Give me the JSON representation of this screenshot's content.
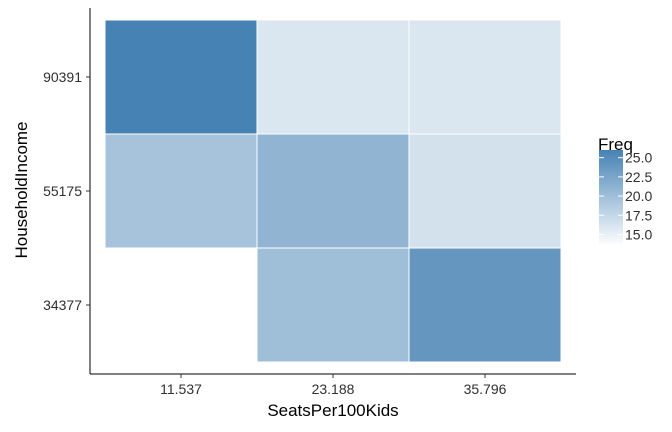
{
  "chart_data": {
    "type": "heatmap",
    "x_categories": [
      "11.537",
      "23.188",
      "35.796"
    ],
    "y_categories": [
      "34377",
      "55175",
      "90391"
    ],
    "xlabel": "SeatsPer100Kids",
    "ylabel": "HouseholdIncome",
    "cells": [
      {
        "x": "11.537",
        "y": "90391",
        "value": 26
      },
      {
        "x": "23.188",
        "y": "90391",
        "value": 16
      },
      {
        "x": "35.796",
        "y": "90391",
        "value": 16
      },
      {
        "x": "11.537",
        "y": "55175",
        "value": 19.5
      },
      {
        "x": "23.188",
        "y": "55175",
        "value": 21
      },
      {
        "x": "35.796",
        "y": "55175",
        "value": 16.5
      },
      {
        "x": "11.537",
        "y": "34377",
        "value": null
      },
      {
        "x": "23.188",
        "y": "34377",
        "value": 20
      },
      {
        "x": "35.796",
        "y": "34377",
        "value": 24
      }
    ],
    "legend": {
      "title": "Freq",
      "breaks": [
        25.0,
        22.5,
        20.0,
        17.5,
        15.0
      ],
      "labels": [
        "25.0",
        "22.5",
        "20.0",
        "17.5",
        "15.0"
      ],
      "range": [
        13.5,
        26
      ],
      "placement": "right"
    },
    "colors": {
      "low": "#ffffff",
      "high": "#4682b4"
    },
    "grid": false
  }
}
